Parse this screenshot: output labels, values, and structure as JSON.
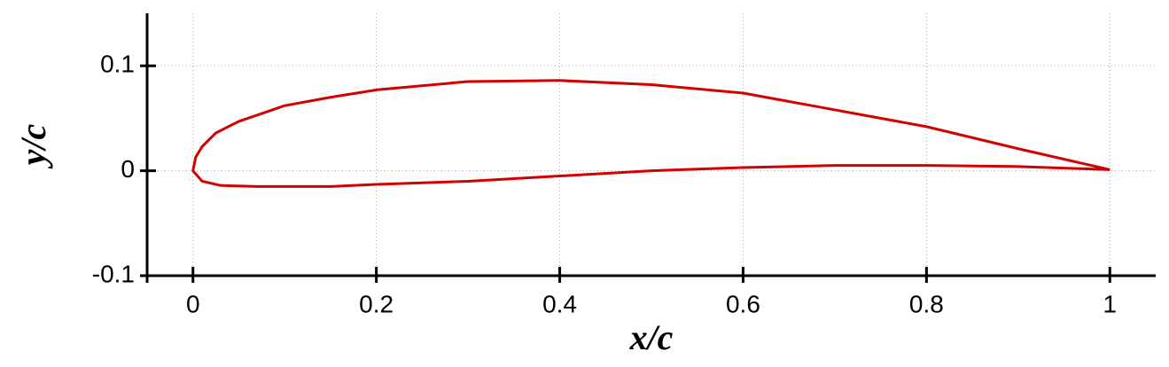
{
  "chart_data": {
    "type": "line",
    "xlabel": "x/c",
    "ylabel": "y/c",
    "x": [
      1,
      0.9,
      0.8,
      0.7,
      0.6,
      0.5,
      0.4,
      0.3,
      0.2,
      0.15,
      0.1,
      0.05,
      0.025,
      0.01,
      0.003,
      0,
      0.01,
      0.03,
      0.07,
      0.15,
      0.2,
      0.3,
      0.4,
      0.5,
      0.6,
      0.7,
      0.8,
      0.9,
      1
    ],
    "values": [
      0.001,
      0.021,
      0.042,
      0.058,
      0.074,
      0.082,
      0.086,
      0.085,
      0.077,
      0.07,
      0.062,
      0.047,
      0.036,
      0.023,
      0.013,
      0,
      -0.01,
      -0.014,
      -0.015,
      -0.015,
      -0.013,
      -0.01,
      -0.005,
      0,
      0.003,
      0.005,
      0.005,
      0.004,
      0.001
    ],
    "color": "#d40000",
    "xlim": [
      -0.05,
      1.05
    ],
    "ylim": [
      -0.1,
      0.15
    ],
    "xticks": [
      0,
      0.2,
      0.4,
      0.6,
      0.8,
      1
    ],
    "yticks": [
      -0.1,
      0,
      0.1
    ],
    "grid": true
  }
}
